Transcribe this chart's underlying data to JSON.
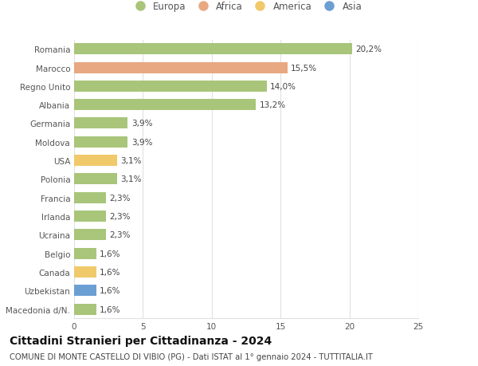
{
  "countries": [
    "Romania",
    "Marocco",
    "Regno Unito",
    "Albania",
    "Germania",
    "Moldova",
    "USA",
    "Polonia",
    "Francia",
    "Irlanda",
    "Ucraina",
    "Belgio",
    "Canada",
    "Uzbekistan",
    "Macedonia d/N."
  ],
  "values": [
    20.2,
    15.5,
    14.0,
    13.2,
    3.9,
    3.9,
    3.1,
    3.1,
    2.3,
    2.3,
    2.3,
    1.6,
    1.6,
    1.6,
    1.6
  ],
  "labels": [
    "20,2%",
    "15,5%",
    "14,0%",
    "13,2%",
    "3,9%",
    "3,9%",
    "3,1%",
    "3,1%",
    "2,3%",
    "2,3%",
    "2,3%",
    "1,6%",
    "1,6%",
    "1,6%",
    "1,6%"
  ],
  "categories": [
    "Europa",
    "Africa",
    "America",
    "Asia"
  ],
  "continent": [
    "Europa",
    "Africa",
    "Europa",
    "Europa",
    "Europa",
    "Europa",
    "America",
    "Europa",
    "Europa",
    "Europa",
    "Europa",
    "Europa",
    "America",
    "Asia",
    "Europa"
  ],
  "colors": {
    "Europa": "#a8c57a",
    "Africa": "#e8a882",
    "America": "#f0c96a",
    "Asia": "#6b9fd4"
  },
  "xlim": [
    0,
    25
  ],
  "xticks": [
    0,
    5,
    10,
    15,
    20,
    25
  ],
  "title": "Cittadini Stranieri per Cittadinanza - 2024",
  "subtitle": "COMUNE DI MONTE CASTELLO DI VIBIO (PG) - Dati ISTAT al 1° gennaio 2024 - TUTTITALIA.IT",
  "bg_color": "#ffffff",
  "grid_color": "#e0e0e0",
  "bar_height": 0.6,
  "label_fontsize": 7.5,
  "tick_fontsize": 7.5,
  "title_fontsize": 10,
  "subtitle_fontsize": 7.2
}
